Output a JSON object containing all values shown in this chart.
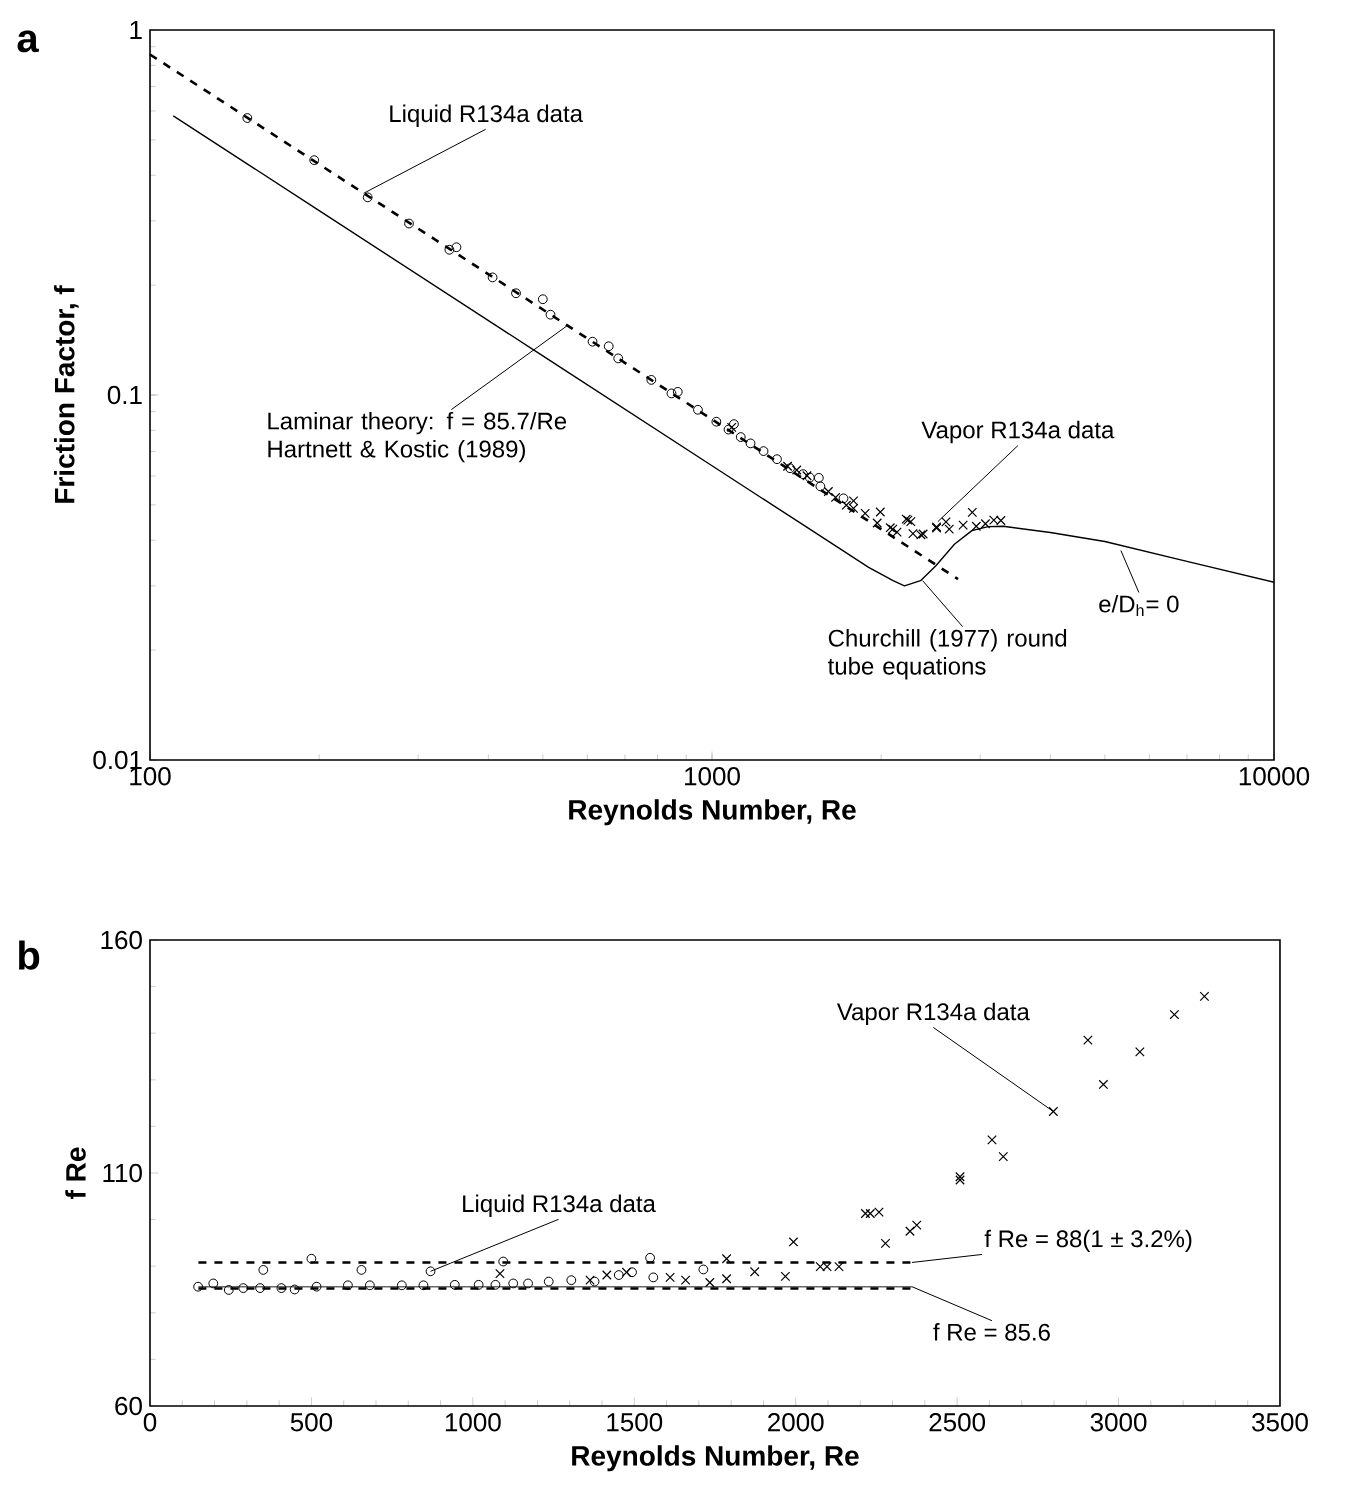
{
  "chart_data": [
    {
      "type": "scatter",
      "title": "a",
      "xlabel": "Reynolds Number, Re",
      "ylabel": "Friction Factor, f",
      "log": "xy",
      "legend": false,
      "grid": false,
      "xlim": [
        100,
        10000
      ],
      "ylim": [
        0.01,
        1
      ],
      "xticks": [
        100,
        1000,
        10000
      ],
      "yticks": [
        0.01,
        0.1,
        1
      ],
      "series": [
        {
          "marker": "circle",
          "color": "#000000",
          "x": [
            149,
            196,
            244,
            289,
            341,
            351,
            407,
            448,
            500,
            516,
            613,
            655,
            681,
            780,
            847,
            869,
            944,
            1018,
            1070,
            1094,
            1125,
            1171,
            1235,
            1305,
            1377,
            1452,
            1493,
            1549,
            1559,
            1714
          ],
          "values": [
            0.574,
            0.44,
            0.348,
            0.295,
            0.25,
            0.254,
            0.21,
            0.19,
            0.183,
            0.166,
            0.14,
            0.136,
            0.126,
            0.11,
            0.101,
            0.102,
            0.0911,
            0.0845,
            0.0804,
            0.0832,
            0.0767,
            0.0737,
            0.0702,
            0.0667,
            0.063,
            0.0607,
            0.0594,
            0.0593,
            0.0562,
            0.0521
          ]
        },
        {
          "marker": "cross",
          "color": "#000000",
          "x": [
            1084,
            1363,
            1415,
            1476,
            1611,
            1659,
            1734,
            1786,
            1786,
            1873,
            1968,
            1993,
            2076,
            2097,
            2134,
            2216,
            2231,
            2258,
            2278,
            2354,
            2375,
            2509,
            2509,
            2608,
            2643,
            2798,
            2905,
            2953,
            3066,
            3173,
            3266
          ],
          "values": [
            0.0815,
            0.0638,
            0.0623,
            0.0601,
            0.0544,
            0.0524,
            0.0499,
            0.0513,
            0.0489,
            0.0474,
            0.0446,
            0.0478,
            0.0433,
            0.0429,
            0.0421,
            0.0457,
            0.0454,
            0.045,
            0.0417,
            0.0414,
            0.0416,
            0.0435,
            0.0432,
            0.0449,
            0.0429,
            0.044,
            0.0477,
            0.0437,
            0.0444,
            0.0454,
            0.0453
          ]
        },
        {
          "type": "line",
          "line_style": "dashed",
          "color": "#000000",
          "x": [
            100,
            2740
          ],
          "values": [
            0.857,
            0.0313
          ]
        },
        {
          "type": "line",
          "line_style": "solid",
          "color": "#000000",
          "x": [
            110,
            200,
            500,
            1000,
            1500,
            1900,
            2100,
            2200,
            2350,
            2500,
            2700,
            2900,
            3100,
            3300,
            4000,
            5000,
            7000,
            10000
          ],
          "values": [
            0.582,
            0.32,
            0.128,
            0.064,
            0.0427,
            0.0337,
            0.031,
            0.03,
            0.031,
            0.034,
            0.039,
            0.0425,
            0.0436,
            0.0437,
            0.042,
            0.0397,
            0.035,
            0.0307
          ]
        }
      ],
      "annotations": [
        {
          "text": "Liquid R134a data",
          "x": 240,
          "y": 0.357
        },
        {
          "text": "Laminar theory: f = 85.7/Re Hartnett & Kostic (1989)",
          "x": 553,
          "y": 0.155
        },
        {
          "text": "Vapor R134a data",
          "x": 2523,
          "y": 0.045
        },
        {
          "text": "Churchill (1977) round tube equations",
          "x": 2370,
          "y": 0.031
        },
        {
          "text": "e/D$_{h}$= 0",
          "x": 5340,
          "y": 0.0375
        }
      ]
    },
    {
      "type": "scatter",
      "title": "b",
      "xlabel": "Reynolds Number, Re",
      "ylabel": "f Re",
      "legend": false,
      "grid": false,
      "xlim": [
        0,
        3500
      ],
      "ylim": [
        60,
        160
      ],
      "xticks": [
        0,
        500,
        1000,
        1500,
        2000,
        2500,
        3000,
        3500
      ],
      "yticks": [
        60,
        110,
        160
      ],
      "series": [
        {
          "marker": "circle",
          "color": "#000000",
          "x": [
            149,
            196,
            244,
            289,
            341,
            351,
            407,
            448,
            500,
            516,
            613,
            655,
            681,
            780,
            847,
            869,
            944,
            1018,
            1070,
            1094,
            1125,
            1171,
            1235,
            1305,
            1377,
            1452,
            1493,
            1549,
            1559,
            1714
          ],
          "values": [
            85.6,
            86.3,
            84.9,
            85.3,
            85.3,
            89.2,
            85.3,
            85.0,
            91.6,
            85.6,
            85.9,
            89.2,
            85.9,
            85.9,
            85.9,
            88.9,
            86.0,
            86.0,
            86.0,
            91.0,
            86.3,
            86.3,
            86.7,
            87.0,
            86.7,
            88.1,
            88.7,
            91.8,
            87.6,
            89.3
          ]
        },
        {
          "marker": "cross",
          "color": "#000000",
          "x": [
            1084,
            1363,
            1415,
            1476,
            1611,
            1659,
            1734,
            1786,
            1786,
            1873,
            1968,
            1993,
            2076,
            2097,
            2134,
            2216,
            2231,
            2258,
            2278,
            2354,
            2375,
            2509,
            2509,
            2608,
            2643,
            2798,
            2905,
            2953,
            3066,
            3173,
            3266
          ],
          "values": [
            88.4,
            87.0,
            88.1,
            88.7,
            87.6,
            87.0,
            86.5,
            91.6,
            87.3,
            88.8,
            87.8,
            95.2,
            89.9,
            89.9,
            89.9,
            101.3,
            101.3,
            101.6,
            94.9,
            97.5,
            98.8,
            109.2,
            108.5,
            117.1,
            113.5,
            123.2,
            138.5,
            129.0,
            136.0,
            144.0,
            147.9
          ]
        },
        {
          "type": "line",
          "line_style": "solid",
          "color": "#666666",
          "x": [
            150,
            2360
          ],
          "values": [
            85.6,
            85.6
          ]
        },
        {
          "type": "line",
          "line_style": "dashed",
          "color": "#000000",
          "x": [
            150,
            2360
          ],
          "values": [
            90.8,
            90.8
          ]
        },
        {
          "type": "line",
          "line_style": "dashed",
          "color": "#000000",
          "x": [
            150,
            2360
          ],
          "values": [
            85.2,
            85.2
          ]
        }
      ],
      "annotations": [
        {
          "text": "Liquid R134a data",
          "x": 869,
          "y": 88.9
        },
        {
          "text": "Vapor R134a data",
          "x": 2798,
          "y": 123.2
        },
        {
          "text": "f Re = 88(1 ± 3.2%)",
          "x": 2360,
          "y": 90.8
        },
        {
          "text": "f Re = 85.6",
          "x": 2360,
          "y": 85.6
        }
      ]
    }
  ]
}
